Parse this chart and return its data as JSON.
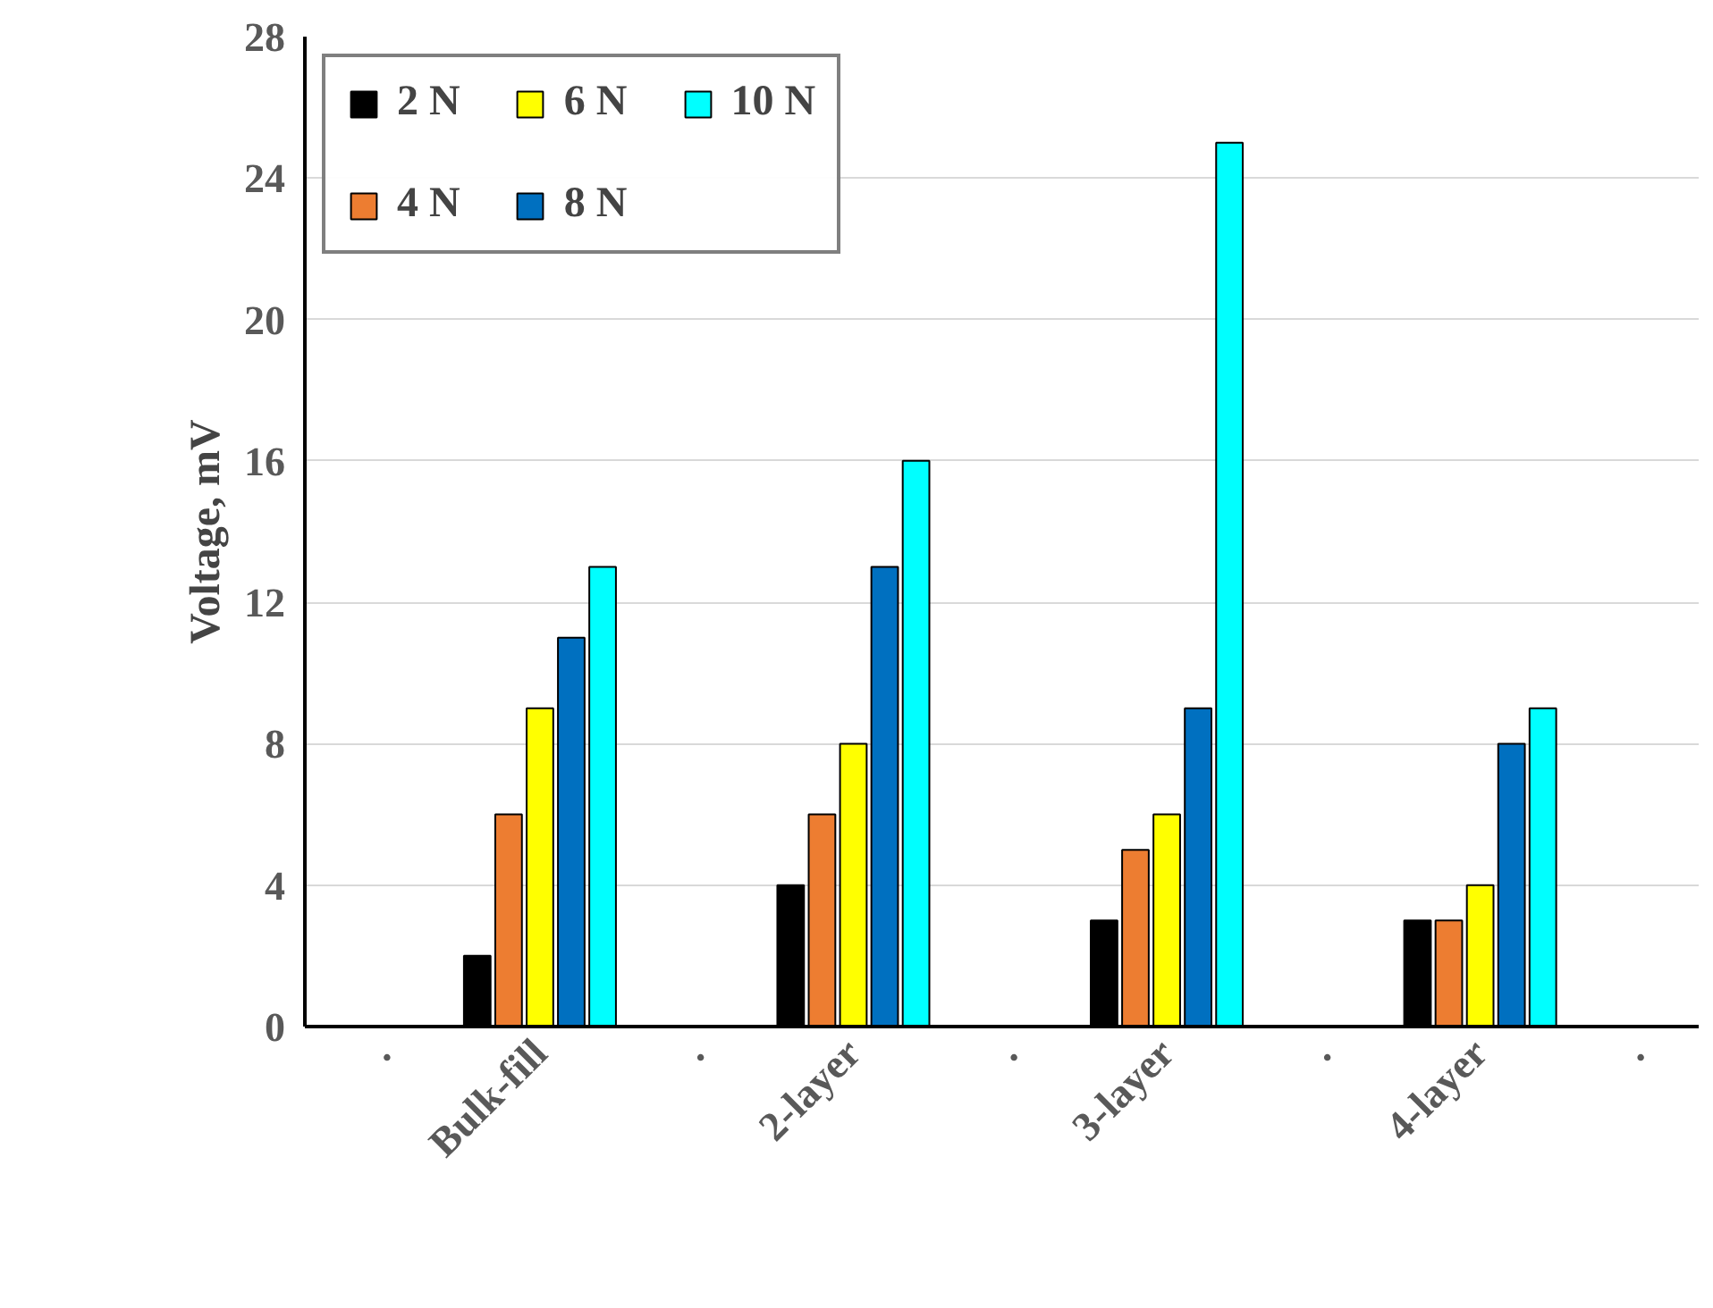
{
  "chart_data": {
    "type": "bar",
    "ylabel": "Voltage, mV",
    "categories": [
      ".",
      "Bulk-fill",
      ".",
      "2-layer",
      ".",
      "3-layer",
      ".",
      "4-layer",
      "."
    ],
    "series": [
      {
        "name": "2 N",
        "color": "#000000",
        "values": [
          null,
          2,
          null,
          4,
          null,
          3,
          null,
          3,
          null
        ]
      },
      {
        "name": "4 N",
        "color": "#ed7d31",
        "values": [
          null,
          6,
          null,
          6,
          null,
          5,
          null,
          3,
          null
        ]
      },
      {
        "name": "6 N",
        "color": "#ffff00",
        "values": [
          null,
          9,
          null,
          8,
          null,
          6,
          null,
          4,
          null
        ]
      },
      {
        "name": "8 N",
        "color": "#0070c0",
        "values": [
          null,
          11,
          null,
          13,
          null,
          9,
          null,
          8,
          null
        ]
      },
      {
        "name": "10 N",
        "color": "#00ffff",
        "values": [
          null,
          13,
          null,
          16,
          null,
          25,
          null,
          9,
          null
        ]
      }
    ],
    "ylim": [
      0,
      28
    ],
    "yticks": [
      0,
      4,
      8,
      12,
      16,
      20,
      24,
      28
    ],
    "grid": "y",
    "legend": "top left"
  }
}
